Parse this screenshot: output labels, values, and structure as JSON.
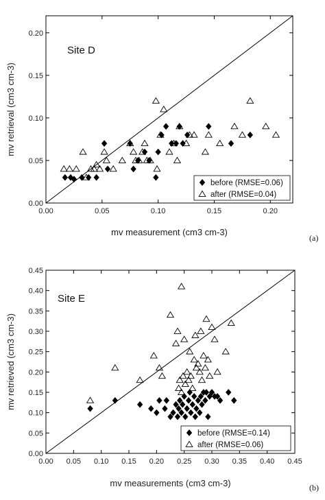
{
  "chart_data": [
    {
      "type": "scatter",
      "panel_label": "(a)",
      "annotation": "Site D",
      "xlabel": "mv measurement (cm3 cm-3)",
      "ylabel": "mv retrieval (cm3 cm-3)",
      "xlim": [
        0.0,
        0.22
      ],
      "ylim": [
        0.0,
        0.22
      ],
      "x_ticks": [
        "0.00",
        "0.05",
        "0.10",
        "0.15",
        "0.20"
      ],
      "y_ticks": [
        "0.00",
        "0.05",
        "0.10",
        "0.15",
        "0.20"
      ],
      "one_to_one_line": true,
      "legend_position": "bottom-right",
      "series": [
        {
          "name": "before  (RMSE=0.06)",
          "marker": "filled-diamond",
          "color": "#000000",
          "points": [
            [
              0.017,
              0.03
            ],
            [
              0.022,
              0.03
            ],
            [
              0.025,
              0.028
            ],
            [
              0.032,
              0.03
            ],
            [
              0.038,
              0.03
            ],
            [
              0.045,
              0.03
            ],
            [
              0.052,
              0.07
            ],
            [
              0.055,
              0.04
            ],
            [
              0.075,
              0.07
            ],
            [
              0.078,
              0.04
            ],
            [
              0.082,
              0.05
            ],
            [
              0.088,
              0.06
            ],
            [
              0.092,
              0.05
            ],
            [
              0.098,
              0.03
            ],
            [
              0.1,
              0.06
            ],
            [
              0.103,
              0.08
            ],
            [
              0.107,
              0.09
            ],
            [
              0.112,
              0.07
            ],
            [
              0.116,
              0.07
            ],
            [
              0.119,
              0.09
            ],
            [
              0.122,
              0.07
            ],
            [
              0.126,
              0.08
            ],
            [
              0.145,
              0.09
            ],
            [
              0.165,
              0.07
            ],
            [
              0.182,
              0.08
            ]
          ]
        },
        {
          "name": "after  (RMSE=0.04)",
          "marker": "open-triangle",
          "color": "#000000",
          "points": [
            [
              0.016,
              0.04
            ],
            [
              0.021,
              0.04
            ],
            [
              0.027,
              0.04
            ],
            [
              0.033,
              0.06
            ],
            [
              0.036,
              0.03
            ],
            [
              0.04,
              0.04
            ],
            [
              0.043,
              0.04
            ],
            [
              0.045,
              0.045
            ],
            [
              0.048,
              0.04
            ],
            [
              0.052,
              0.06
            ],
            [
              0.054,
              0.05
            ],
            [
              0.06,
              0.04
            ],
            [
              0.068,
              0.05
            ],
            [
              0.075,
              0.07
            ],
            [
              0.078,
              0.06
            ],
            [
              0.08,
              0.05
            ],
            [
              0.083,
              0.05
            ],
            [
              0.086,
              0.06
            ],
            [
              0.088,
              0.07
            ],
            [
              0.09,
              0.05
            ],
            [
              0.093,
              0.05
            ],
            [
              0.098,
              0.12
            ],
            [
              0.099,
              0.04
            ],
            [
              0.102,
              0.08
            ],
            [
              0.105,
              0.11
            ],
            [
              0.11,
              0.06
            ],
            [
              0.114,
              0.07
            ],
            [
              0.117,
              0.05
            ],
            [
              0.119,
              0.09
            ],
            [
              0.125,
              0.07
            ],
            [
              0.128,
              0.08
            ],
            [
              0.132,
              0.08
            ],
            [
              0.142,
              0.06
            ],
            [
              0.145,
              0.08
            ],
            [
              0.155,
              0.07
            ],
            [
              0.168,
              0.09
            ],
            [
              0.175,
              0.08
            ],
            [
              0.182,
              0.12
            ],
            [
              0.196,
              0.09
            ],
            [
              0.205,
              0.08
            ]
          ]
        }
      ]
    },
    {
      "type": "scatter",
      "panel_label": "(b)",
      "annotation": "Site E",
      "xlabel": "mv measurements (cm3 cm-3)",
      "ylabel": "mv retrieved (cm3 cm-3)",
      "xlim": [
        0.0,
        0.45
      ],
      "ylim": [
        0.0,
        0.45
      ],
      "x_ticks": [
        "0.00",
        "0.05",
        "0.10",
        "0.15",
        "0.20",
        "0.25",
        "0.30",
        "0.35",
        "0.40",
        "0.45"
      ],
      "y_ticks": [
        "0.00",
        "0.05",
        "0.10",
        "0.15",
        "0.20",
        "0.25",
        "0.30",
        "0.35",
        "0.40",
        "0.45"
      ],
      "one_to_one_line": true,
      "legend_position": "bottom-right",
      "series": [
        {
          "name": "before (RMSE=0.14)",
          "marker": "filled-diamond",
          "color": "#000000",
          "points": [
            [
              0.08,
              0.11
            ],
            [
              0.125,
              0.13
            ],
            [
              0.17,
              0.12
            ],
            [
              0.19,
              0.11
            ],
            [
              0.2,
              0.1
            ],
            [
              0.205,
              0.13
            ],
            [
              0.215,
              0.11
            ],
            [
              0.218,
              0.13
            ],
            [
              0.225,
              0.09
            ],
            [
              0.23,
              0.1
            ],
            [
              0.235,
              0.12
            ],
            [
              0.238,
              0.09
            ],
            [
              0.24,
              0.11
            ],
            [
              0.242,
              0.13
            ],
            [
              0.245,
              0.1
            ],
            [
              0.247,
              0.12
            ],
            [
              0.25,
              0.14
            ],
            [
              0.252,
              0.09
            ],
            [
              0.255,
              0.11
            ],
            [
              0.258,
              0.13
            ],
            [
              0.26,
              0.15
            ],
            [
              0.262,
              0.1
            ],
            [
              0.265,
              0.12
            ],
            [
              0.268,
              0.14
            ],
            [
              0.27,
              0.09
            ],
            [
              0.272,
              0.11
            ],
            [
              0.275,
              0.13
            ],
            [
              0.278,
              0.1
            ],
            [
              0.28,
              0.14
            ],
            [
              0.282,
              0.12
            ],
            [
              0.285,
              0.15
            ],
            [
              0.288,
              0.13
            ],
            [
              0.29,
              0.15
            ],
            [
              0.293,
              0.09
            ],
            [
              0.296,
              0.14
            ],
            [
              0.3,
              0.15
            ],
            [
              0.305,
              0.14
            ],
            [
              0.31,
              0.14
            ],
            [
              0.315,
              0.13
            ],
            [
              0.33,
              0.15
            ],
            [
              0.34,
              0.13
            ]
          ]
        },
        {
          "name": "after  (RMSE=0.06)",
          "marker": "open-triangle",
          "color": "#000000",
          "points": [
            [
              0.08,
              0.13
            ],
            [
              0.125,
              0.21
            ],
            [
              0.17,
              0.18
            ],
            [
              0.195,
              0.24
            ],
            [
              0.205,
              0.21
            ],
            [
              0.21,
              0.19
            ],
            [
              0.225,
              0.34
            ],
            [
              0.235,
              0.27
            ],
            [
              0.238,
              0.3
            ],
            [
              0.24,
              0.16
            ],
            [
              0.242,
              0.18
            ],
            [
              0.245,
              0.15
            ],
            [
              0.245,
              0.41
            ],
            [
              0.248,
              0.19
            ],
            [
              0.25,
              0.28
            ],
            [
              0.252,
              0.17
            ],
            [
              0.255,
              0.2
            ],
            [
              0.258,
              0.18
            ],
            [
              0.26,
              0.25
            ],
            [
              0.262,
              0.19
            ],
            [
              0.265,
              0.16
            ],
            [
              0.268,
              0.23
            ],
            [
              0.27,
              0.29
            ],
            [
              0.272,
              0.21
            ],
            [
              0.275,
              0.22
            ],
            [
              0.278,
              0.2
            ],
            [
              0.28,
              0.3
            ],
            [
              0.282,
              0.18
            ],
            [
              0.285,
              0.24
            ],
            [
              0.288,
              0.21
            ],
            [
              0.29,
              0.33
            ],
            [
              0.293,
              0.23
            ],
            [
              0.296,
              0.19
            ],
            [
              0.3,
              0.31
            ],
            [
              0.305,
              0.28
            ],
            [
              0.31,
              0.2
            ],
            [
              0.325,
              0.25
            ],
            [
              0.335,
              0.32
            ]
          ]
        }
      ]
    }
  ]
}
